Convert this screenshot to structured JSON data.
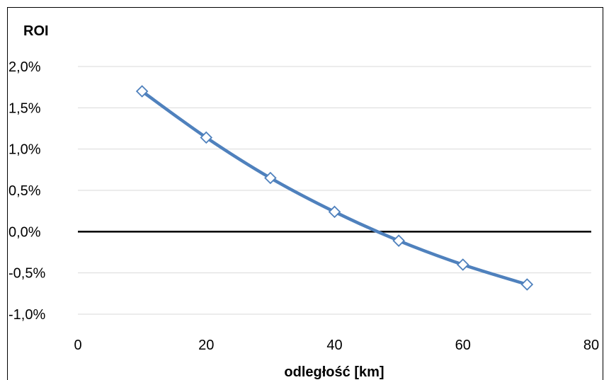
{
  "chart_data": {
    "type": "line",
    "title": "",
    "ylabel": "ROI",
    "xlabel": "odległość [km]",
    "xlim": [
      0,
      80
    ],
    "ylim": [
      -1.0,
      2.0
    ],
    "x_ticks": [
      0,
      20,
      40,
      60,
      80
    ],
    "x_tick_labels": [
      "0",
      "20",
      "40",
      "60",
      "80"
    ],
    "y_ticks": [
      -1.0,
      -0.5,
      0.0,
      0.5,
      1.0,
      1.5,
      2.0
    ],
    "y_tick_labels": [
      "-1,0%",
      "-0,5%",
      "0,0%",
      "0,5%",
      "1,0%",
      "1,5%",
      "2,0%"
    ],
    "grid": true,
    "legend": "none",
    "series": [
      {
        "x": [
          10,
          20,
          30,
          40,
          50,
          60,
          70
        ],
        "values": [
          1.7,
          1.14,
          0.65,
          0.24,
          -0.11,
          -0.4,
          -0.64
        ],
        "color": "#4f81bd",
        "marker": "diamond-open"
      }
    ],
    "zero_line_color": "#000000",
    "grid_color": "#d9d9d9"
  }
}
